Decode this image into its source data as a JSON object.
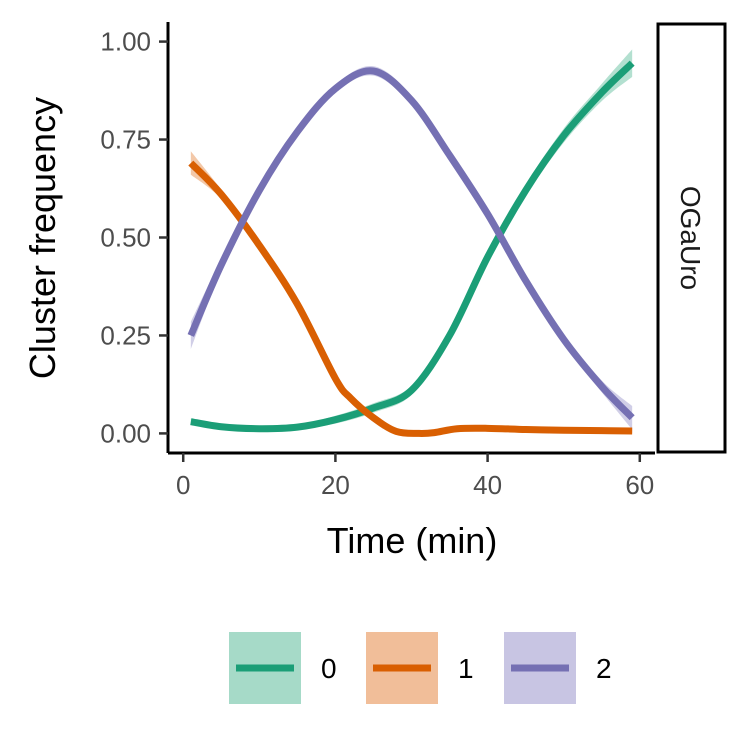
{
  "chart_data": {
    "type": "line",
    "xlabel": "Time (min)",
    "ylabel": "Cluster frequency",
    "xlim": [
      -2,
      62
    ],
    "ylim": [
      -0.05,
      1.05
    ],
    "x_ticks": [
      0,
      20,
      40,
      60
    ],
    "x_tick_labels": [
      "0",
      "20",
      "40",
      "60"
    ],
    "y_ticks": [
      0,
      0.25,
      0.5,
      0.75,
      1
    ],
    "y_tick_labels": [
      "0.00",
      "0.25",
      "0.50",
      "0.75",
      "1.00"
    ],
    "facet_label": "OGaUro",
    "grid": false,
    "legend_position": "bottom",
    "series": [
      {
        "name": "0",
        "color": "#1b9e77",
        "fill": "#a6dac8",
        "x": [
          1,
          5,
          10,
          15,
          20,
          25,
          30,
          35,
          40,
          45,
          50,
          55,
          59
        ],
        "y": [
          0.03,
          0.017,
          0.012,
          0.016,
          0.035,
          0.065,
          0.11,
          0.25,
          0.45,
          0.62,
          0.76,
          0.87,
          0.945
        ],
        "band": [
          0.008,
          0.005,
          0.004,
          0.005,
          0.01,
          0.012,
          0.012,
          0.015,
          0.015,
          0.015,
          0.018,
          0.022,
          0.035
        ]
      },
      {
        "name": "1",
        "color": "#d95f02",
        "fill": "#f1be99",
        "x": [
          1,
          5,
          10,
          15,
          20,
          22,
          25,
          28,
          31,
          33,
          36,
          40,
          45,
          50,
          55,
          59
        ],
        "y": [
          0.69,
          0.61,
          0.48,
          0.33,
          0.14,
          0.09,
          0.04,
          0.005,
          0.0,
          0.002,
          0.012,
          0.013,
          0.01,
          0.008,
          0.007,
          0.006
        ],
        "band": [
          0.03,
          0.012,
          0.01,
          0.01,
          0.01,
          0.008,
          0.006,
          0.004,
          0.003,
          0.003,
          0.003,
          0.003,
          0.003,
          0.003,
          0.004,
          0.006
        ]
      },
      {
        "name": "2",
        "color": "#7570b3",
        "fill": "#c8c5e3",
        "x": [
          1,
          5,
          10,
          15,
          20,
          25,
          30,
          35,
          40,
          45,
          50,
          55,
          59
        ],
        "y": [
          0.25,
          0.43,
          0.62,
          0.77,
          0.88,
          0.925,
          0.85,
          0.71,
          0.56,
          0.39,
          0.24,
          0.12,
          0.04
        ],
        "band": [
          0.035,
          0.015,
          0.01,
          0.01,
          0.01,
          0.012,
          0.012,
          0.01,
          0.01,
          0.01,
          0.012,
          0.015,
          0.03
        ]
      }
    ]
  }
}
